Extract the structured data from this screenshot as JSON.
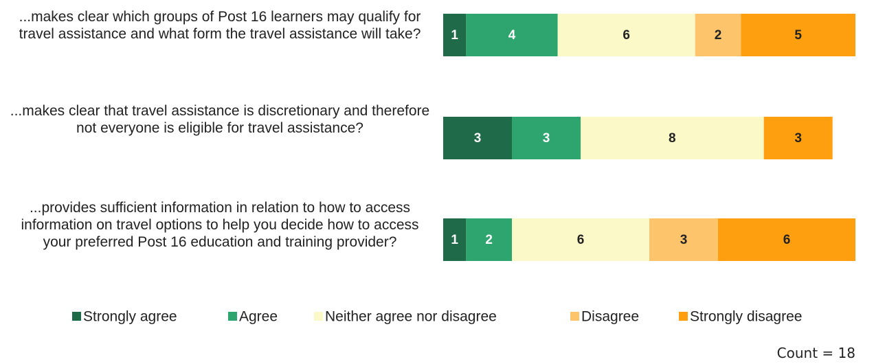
{
  "chart_data": {
    "type": "stacked-bar-horizontal",
    "categories": [
      "...makes clear which groups of Post 16 learners may qualify for travel assistance and what form the travel assistance will take?",
      "...makes clear that travel assistance is discretionary and therefore not everyone is eligible for travel assistance?",
      "...provides sufficient information in relation to how to access information on travel options to help you decide how to access your preferred Post 16 education and training provider?"
    ],
    "series": [
      {
        "name": "Strongly agree",
        "color": "#1f6b49",
        "values": [
          1,
          3,
          1
        ]
      },
      {
        "name": "Agree",
        "color": "#2ea56e",
        "values": [
          4,
          3,
          2
        ]
      },
      {
        "name": "Neither agree nor disagree",
        "color": "#fcf9c9",
        "values": [
          6,
          8,
          6
        ]
      },
      {
        "name": "Disagree",
        "color": "#fec46c",
        "values": [
          2,
          null,
          3
        ]
      },
      {
        "name": "Strongly disagree",
        "color": "#fd9f0e",
        "values": [
          5,
          3,
          6
        ]
      }
    ],
    "annotation": "Count = 18",
    "legend": "bottom"
  }
}
